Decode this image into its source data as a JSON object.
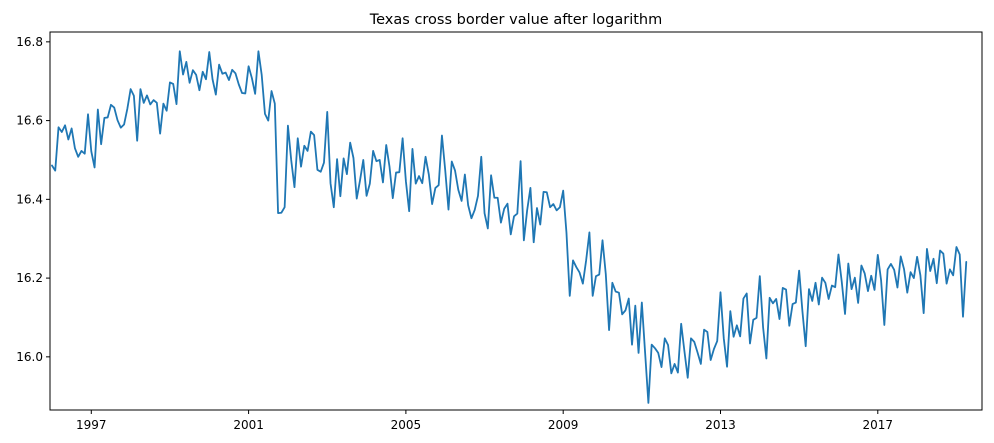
{
  "chart_data": {
    "type": "line",
    "title": "Texas cross border value after logarithm",
    "xlabel": "",
    "ylabel": "",
    "x_start": "1996-01",
    "x_frequency": "monthly",
    "xlim": [
      1995.95,
      2019.65
    ],
    "ylim": [
      15.865,
      16.825
    ],
    "x_ticks": [
      1997,
      2001,
      2005,
      2009,
      2013,
      2017
    ],
    "x_tick_labels": [
      "1997",
      "2001",
      "2005",
      "2009",
      "2013",
      "2017"
    ],
    "y_ticks": [
      16.0,
      16.2,
      16.4,
      16.6,
      16.8
    ],
    "y_tick_labels": [
      "16.0",
      "16.2",
      "16.4",
      "16.6",
      "16.8"
    ],
    "grid": false,
    "legend": "none",
    "series": [
      {
        "color": "#1f77b4",
        "values": [
          16.486,
          16.473,
          16.583,
          16.571,
          16.588,
          16.552,
          16.58,
          16.53,
          16.508,
          16.523,
          16.516,
          16.616,
          16.522,
          16.481,
          16.628,
          16.54,
          16.607,
          16.608,
          16.64,
          16.633,
          16.601,
          16.582,
          16.59,
          16.63,
          16.68,
          16.663,
          16.549,
          16.68,
          16.645,
          16.664,
          16.641,
          16.652,
          16.645,
          16.567,
          16.643,
          16.625,
          16.697,
          16.693,
          16.642,
          16.776,
          16.717,
          16.749,
          16.696,
          16.728,
          16.716,
          16.677,
          16.724,
          16.705,
          16.774,
          16.705,
          16.666,
          16.742,
          16.719,
          16.722,
          16.703,
          16.729,
          16.72,
          16.692,
          16.67,
          16.669,
          16.738,
          16.708,
          16.668,
          16.776,
          16.716,
          16.617,
          16.6,
          16.675,
          16.643,
          16.365,
          16.366,
          16.38,
          16.587,
          16.5,
          16.431,
          16.555,
          16.483,
          16.536,
          16.523,
          16.572,
          16.563,
          16.475,
          16.47,
          16.493,
          16.622,
          16.441,
          16.38,
          16.502,
          16.408,
          16.504,
          16.464,
          16.544,
          16.505,
          16.402,
          16.448,
          16.5,
          16.409,
          16.44,
          16.523,
          16.497,
          16.5,
          16.443,
          16.538,
          16.483,
          16.403,
          16.468,
          16.469,
          16.555,
          16.446,
          16.37,
          16.528,
          16.44,
          16.459,
          16.441,
          16.508,
          16.463,
          16.388,
          16.429,
          16.436,
          16.562,
          16.474,
          16.374,
          16.496,
          16.473,
          16.424,
          16.396,
          16.463,
          16.385,
          16.352,
          16.373,
          16.409,
          16.508,
          16.365,
          16.326,
          16.461,
          16.404,
          16.404,
          16.341,
          16.376,
          16.389,
          16.311,
          16.357,
          16.364,
          16.497,
          16.296,
          16.372,
          16.429,
          16.291,
          16.378,
          16.336,
          16.419,
          16.418,
          16.38,
          16.388,
          16.372,
          16.38,
          16.422,
          16.315,
          16.155,
          16.245,
          16.228,
          16.214,
          16.186,
          16.245,
          16.316,
          16.155,
          16.205,
          16.209,
          16.296,
          16.21,
          16.068,
          16.188,
          16.166,
          16.163,
          16.108,
          16.118,
          16.148,
          16.031,
          16.13,
          16.01,
          16.138,
          16.01,
          15.883,
          16.031,
          16.022,
          16.01,
          15.974,
          16.047,
          16.03,
          15.958,
          15.982,
          15.96,
          16.084,
          16.014,
          15.947,
          16.047,
          16.038,
          16.011,
          15.982,
          16.069,
          16.063,
          15.992,
          16.02,
          16.04,
          16.164,
          16.047,
          15.975,
          16.116,
          16.051,
          16.08,
          16.052,
          16.148,
          16.161,
          16.034,
          16.094,
          16.099,
          16.205,
          16.075,
          15.996,
          16.15,
          16.136,
          16.147,
          16.096,
          16.175,
          16.171,
          16.079,
          16.134,
          16.138,
          16.219,
          16.116,
          16.027,
          16.172,
          16.142,
          16.188,
          16.133,
          16.201,
          16.188,
          16.147,
          16.181,
          16.177,
          16.26,
          16.191,
          16.109,
          16.237,
          16.172,
          16.201,
          16.137,
          16.232,
          16.212,
          16.167,
          16.206,
          16.17,
          16.259,
          16.195,
          16.081,
          16.222,
          16.236,
          16.221,
          16.176,
          16.255,
          16.223,
          16.163,
          16.215,
          16.2,
          16.254,
          16.207,
          16.111,
          16.274,
          16.218,
          16.249,
          16.187,
          16.27,
          16.262,
          16.186,
          16.222,
          16.207,
          16.279,
          16.26,
          16.102,
          16.241
        ]
      }
    ]
  }
}
